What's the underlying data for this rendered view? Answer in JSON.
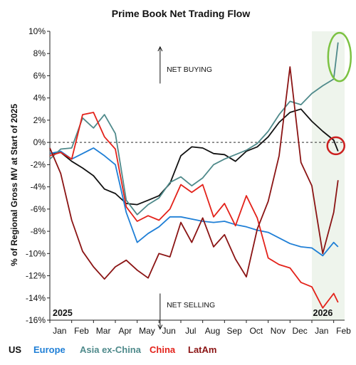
{
  "chart_data": {
    "type": "line",
    "title": "Prime Book Net Trading Flow",
    "ylabel": "% of Regional Gross MV at Start of 2025",
    "xlabel": "",
    "ylim": [
      -16,
      10
    ],
    "yticks": [
      10,
      8,
      6,
      4,
      2,
      0,
      -2,
      -4,
      -6,
      -8,
      -10,
      -12,
      -14,
      -16
    ],
    "ytick_labels": [
      "10%",
      "8%",
      "6%",
      "4%",
      "2%",
      "0%",
      "-2%",
      "-4%",
      "-6%",
      "-8%",
      "-10%",
      "-12%",
      "-14%",
      "-16%"
    ],
    "xlim": [
      0,
      13.5
    ],
    "x_unit": "months since start of 2025",
    "xtick_labels": [
      "Jan",
      "Feb",
      "Mar",
      "Apr",
      "May",
      "Jun",
      "Jul",
      "Aug",
      "Sep",
      "Oct",
      "Nov",
      "Dec",
      "Jan",
      "Feb"
    ],
    "year_labels": [
      "2025",
      "2026"
    ],
    "annotations": [
      "NET BUYING",
      "NET SELLING"
    ],
    "grid": false,
    "zero_line": "dashed",
    "shaded_region": {
      "x0": 12.0,
      "x1": 13.5,
      "color": "#eef4ec"
    },
    "highlights": [
      {
        "shape": "ellipse",
        "color": "#7cc242",
        "series": "Asia ex-China",
        "x": 13.2,
        "y": 7.3
      },
      {
        "shape": "circle",
        "color": "#cc1f1f",
        "series": "US",
        "x": 13.1,
        "y": -0.3
      }
    ],
    "legend_position": "bottom",
    "series": [
      {
        "name": "US",
        "color": "#111111",
        "x": [
          0,
          0.5,
          1,
          1.5,
          2,
          2.5,
          3,
          3.5,
          4,
          4.5,
          5,
          5.5,
          6,
          6.5,
          7,
          7.5,
          8,
          8.5,
          9,
          9.5,
          10,
          10.5,
          11,
          11.5,
          12,
          12.5,
          13,
          13.2
        ],
        "y": [
          -1,
          -0.9,
          -1.7,
          -2.3,
          -3.0,
          -4.2,
          -4.6,
          -5.5,
          -5.6,
          -5.2,
          -4.8,
          -3.7,
          -1.2,
          -0.4,
          -0.5,
          -1.0,
          -1.1,
          -1.7,
          -0.8,
          -0.4,
          0.5,
          1.8,
          2.7,
          3.0,
          1.9,
          1.0,
          0.2,
          -0.8
        ]
      },
      {
        "name": "Europe",
        "color": "#1f7fd6",
        "x": [
          0,
          0.5,
          1,
          1.5,
          2,
          2.5,
          3,
          3.5,
          4,
          4.5,
          5,
          5.5,
          6,
          6.5,
          7,
          7.5,
          8,
          8.5,
          9,
          9.5,
          10,
          10.5,
          11,
          11.5,
          12,
          12.5,
          13,
          13.2
        ],
        "y": [
          -1,
          -0.8,
          -1.5,
          -1.0,
          -0.5,
          -1.2,
          -2.0,
          -6.3,
          -9.0,
          -8.2,
          -7.6,
          -6.7,
          -6.7,
          -6.9,
          -7.1,
          -7.2,
          -7.1,
          -7.4,
          -7.6,
          -7.9,
          -8.1,
          -8.6,
          -9.1,
          -9.4,
          -9.5,
          -10.2,
          -9.0,
          -9.4
        ]
      },
      {
        "name": "Asia ex-China",
        "color": "#4f8a8b",
        "x": [
          0,
          0.5,
          1,
          1.5,
          2,
          2.5,
          3,
          3.5,
          4,
          4.5,
          5,
          5.5,
          6,
          6.5,
          7,
          7.5,
          8,
          8.5,
          9,
          9.5,
          10,
          10.5,
          11,
          11.5,
          12,
          12.5,
          13,
          13.2
        ],
        "y": [
          -1.5,
          -0.6,
          -0.5,
          2.2,
          1.3,
          2.5,
          0.8,
          -5.2,
          -6.5,
          -5.6,
          -5.0,
          -3.6,
          -3.1,
          -3.9,
          -3.2,
          -2.0,
          -1.5,
          -1.1,
          -0.7,
          -0.1,
          1.0,
          2.5,
          3.7,
          3.4,
          4.4,
          5.1,
          5.7,
          9.0
        ]
      },
      {
        "name": "China",
        "color": "#e3221a",
        "x": [
          0,
          0.5,
          1,
          1.5,
          2,
          2.5,
          3,
          3.5,
          4,
          4.5,
          5,
          5.5,
          6,
          6.5,
          7,
          7.5,
          8,
          8.5,
          9,
          9.5,
          10,
          10.5,
          11,
          11.5,
          12,
          12.5,
          13,
          13.2
        ],
        "y": [
          -1.2,
          -0.9,
          -1.5,
          2.5,
          2.7,
          0.5,
          -0.6,
          -5.8,
          -7.1,
          -6.6,
          -7.0,
          -6.0,
          -3.8,
          -4.5,
          -3.8,
          -6.7,
          -5.5,
          -7.5,
          -4.8,
          -6.8,
          -10.4,
          -11.0,
          -11.3,
          -12.6,
          -13.0,
          -14.9,
          -13.6,
          -14.4
        ]
      },
      {
        "name": "LatAm",
        "color": "#8b1414",
        "x": [
          0,
          0.5,
          1,
          1.5,
          2,
          2.5,
          3,
          3.5,
          4,
          4.5,
          5,
          5.5,
          6,
          6.5,
          7,
          7.5,
          8,
          8.5,
          9,
          9.5,
          10,
          10.5,
          11,
          11.5,
          12,
          12.5,
          13,
          13.2
        ],
        "y": [
          -0.5,
          -2.8,
          -7.0,
          -9.8,
          -11.2,
          -12.3,
          -11.2,
          -10.6,
          -11.5,
          -12.2,
          -10.0,
          -10.3,
          -7.2,
          -9.0,
          -6.8,
          -9.4,
          -8.3,
          -10.5,
          -12.1,
          -7.8,
          -5.3,
          -1.2,
          6.8,
          -1.8,
          -3.9,
          -10.0,
          -6.3,
          -3.4
        ]
      }
    ]
  }
}
